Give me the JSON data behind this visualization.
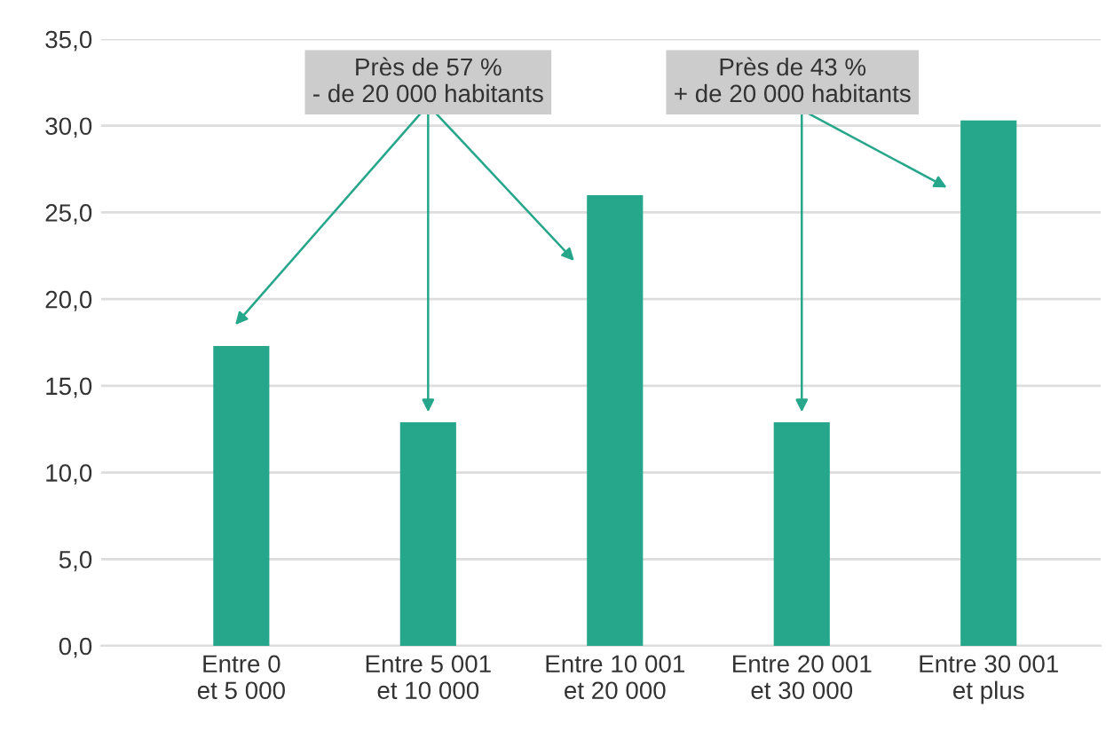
{
  "chart_data": {
    "type": "bar",
    "categories": [
      "Entre 0\net 5 000",
      "Entre 5 001\net 10 000",
      "Entre 10 001\net 20 000",
      "Entre 20 001\net 30 000",
      "Entre 30 001\net plus"
    ],
    "values": [
      17.3,
      12.9,
      26.0,
      12.9,
      30.3
    ],
    "color": "#26a68a",
    "ylim": [
      0,
      35
    ],
    "yticks": [
      {
        "value": 0,
        "label": "0,0"
      },
      {
        "value": 5,
        "label": "5,0"
      },
      {
        "value": 10,
        "label": "10,0"
      },
      {
        "value": 15,
        "label": "15,0"
      },
      {
        "value": 20,
        "label": "20,0"
      },
      {
        "value": 25,
        "label": "25,0"
      },
      {
        "value": 30,
        "label": "30,0"
      },
      {
        "value": 35,
        "label": "35,0"
      }
    ],
    "grid": "y",
    "annotations": [
      "Près de 57 %\n- de 20 000 habitants",
      "Près de 43 %\n+ de 20 000 habitants"
    ]
  }
}
